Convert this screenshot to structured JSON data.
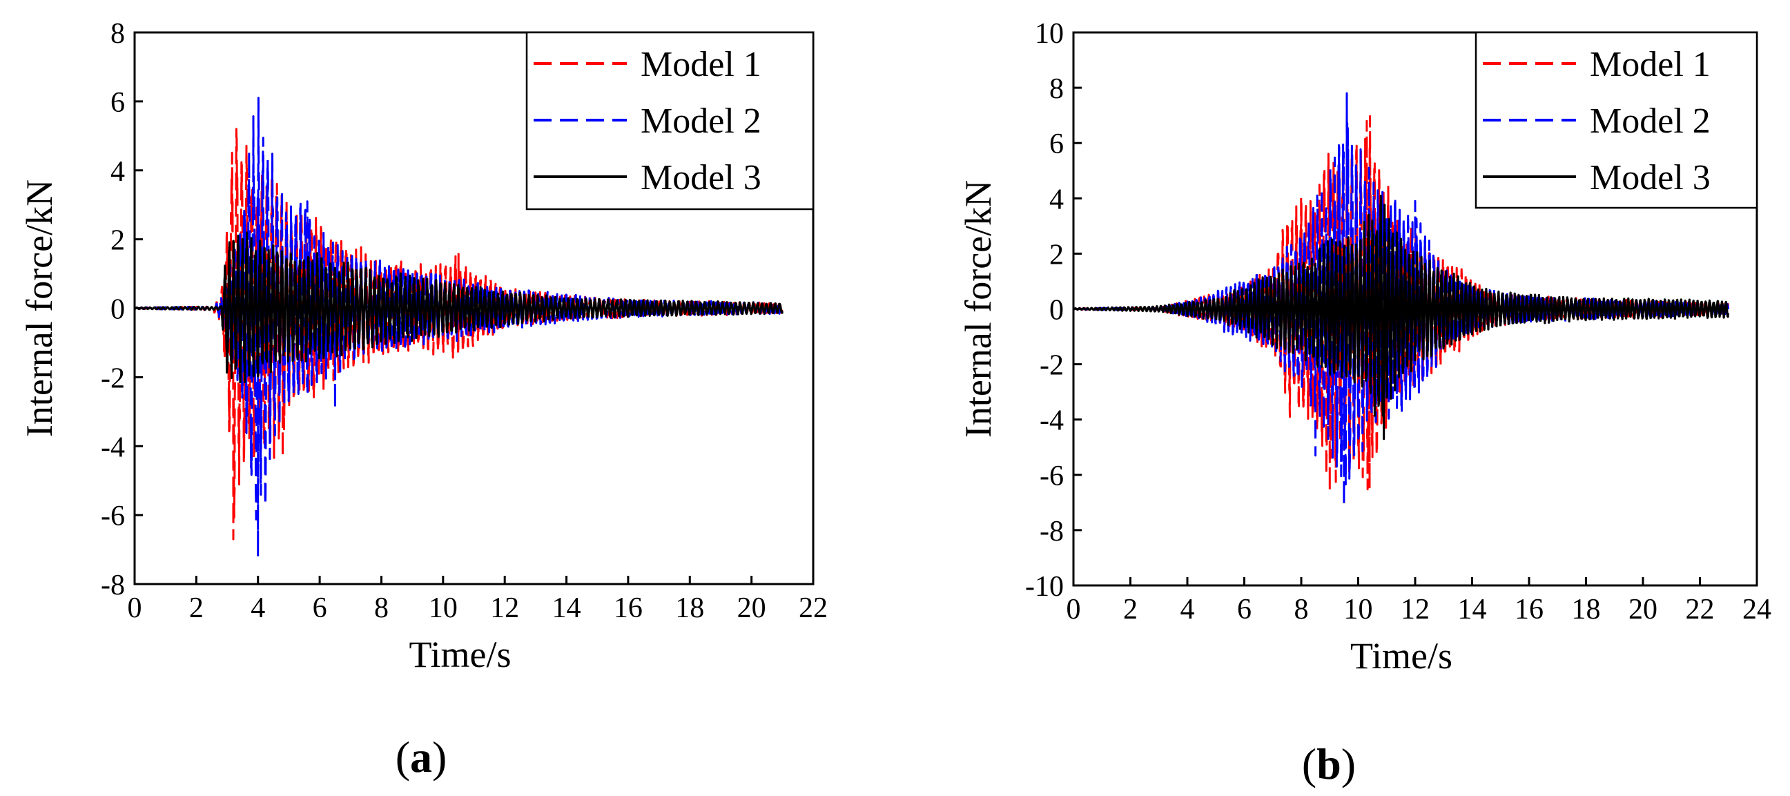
{
  "figure": {
    "panels": [
      {
        "label_open": "(",
        "label_letter": "a",
        "label_close": ")"
      },
      {
        "label_open": "(",
        "label_letter": "b",
        "label_close": ")"
      }
    ]
  },
  "colors": {
    "model1": "#ff0000",
    "model2": "#0000ff",
    "model3": "#000000",
    "axis": "#000000",
    "background": "#ffffff"
  },
  "chart_data": [
    {
      "type": "line",
      "panel": "a",
      "title": "",
      "xlabel": "Time/s",
      "ylabel": "Internal force/kN",
      "xlim": [
        0,
        22
      ],
      "ylim": [
        -8,
        8
      ],
      "xticks": [
        "0",
        "2",
        "4",
        "6",
        "8",
        "10",
        "12",
        "14",
        "16",
        "18",
        "20",
        "22"
      ],
      "yticks": [
        "8",
        "6",
        "4",
        "2",
        "0",
        "-2",
        "-4",
        "-6",
        "-8"
      ],
      "legend_position": "top-right",
      "series": [
        {
          "name": "Model 1",
          "style": "dashed",
          "color": "#ff0000",
          "signal": {
            "t_end": 21,
            "t_start": 2.6,
            "freq": 6.2,
            "noise": 0.2,
            "envelope": [
              [
                0,
                0.02
              ],
              [
                2.5,
                0.05
              ],
              [
                2.8,
                0.4
              ],
              [
                3.0,
                2.5
              ],
              [
                3.2,
                6.2
              ],
              [
                3.5,
                5.0
              ],
              [
                4.0,
                4.0
              ],
              [
                4.5,
                4.5
              ],
              [
                5.0,
                3.2
              ],
              [
                6.0,
                2.5
              ],
              [
                7.0,
                1.8
              ],
              [
                8.0,
                1.4
              ],
              [
                9.0,
                1.2
              ],
              [
                10.5,
                1.4
              ],
              [
                12.0,
                0.6
              ],
              [
                14.0,
                0.35
              ],
              [
                16.0,
                0.25
              ],
              [
                21.0,
                0.15
              ]
            ]
          },
          "peaks": [
            [
              3.2,
              5.6
            ],
            [
              3.2,
              -6.7
            ],
            [
              4.8,
              -4.3
            ],
            [
              10.5,
              1.6
            ]
          ]
        },
        {
          "name": "Model 2",
          "style": "dashed",
          "color": "#0000ff",
          "signal": {
            "t_end": 21,
            "t_start": 2.7,
            "freq": 6.6,
            "noise": 0.2,
            "envelope": [
              [
                0,
                0.02
              ],
              [
                2.6,
                0.05
              ],
              [
                3.0,
                0.8
              ],
              [
                3.5,
                3.0
              ],
              [
                4.0,
                6.6
              ],
              [
                4.4,
                4.5
              ],
              [
                5.0,
                3.0
              ],
              [
                5.6,
                3.0
              ],
              [
                6.0,
                2.2
              ],
              [
                7.0,
                1.6
              ],
              [
                8.0,
                1.3
              ],
              [
                10.0,
                1.0
              ],
              [
                12.0,
                0.6
              ],
              [
                14.0,
                0.4
              ],
              [
                16.0,
                0.25
              ],
              [
                21.0,
                0.15
              ]
            ]
          },
          "peaks": [
            [
              4.0,
              6.3
            ],
            [
              4.0,
              -7.2
            ],
            [
              6.5,
              -2.9
            ],
            [
              5.6,
              3.1
            ]
          ]
        },
        {
          "name": "Model 3",
          "style": "solid",
          "color": "#000000",
          "signal": {
            "t_end": 21,
            "t_start": 2.8,
            "freq": 7.0,
            "noise": 0.12,
            "envelope": [
              [
                0,
                0.02
              ],
              [
                2.8,
                0.05
              ],
              [
                3.0,
                2.0
              ],
              [
                3.5,
                2.3
              ],
              [
                4.0,
                2.0
              ],
              [
                5.0,
                1.7
              ],
              [
                6.0,
                1.5
              ],
              [
                7.0,
                1.3
              ],
              [
                8.0,
                1.1
              ],
              [
                10.0,
                0.8
              ],
              [
                12.0,
                0.5
              ],
              [
                14.0,
                0.3
              ],
              [
                21.0,
                0.15
              ]
            ]
          },
          "peaks": []
        }
      ]
    },
    {
      "type": "line",
      "panel": "b",
      "title": "",
      "xlabel": "Time/s",
      "ylabel": "Internal force/kN",
      "xlim": [
        0,
        24
      ],
      "ylim": [
        -10,
        10
      ],
      "xticks": [
        "0",
        "2",
        "4",
        "6",
        "8",
        "10",
        "12",
        "14",
        "16",
        "18",
        "20",
        "22",
        "24"
      ],
      "yticks": [
        "10",
        "8",
        "6",
        "4",
        "2",
        "0",
        "-2",
        "-4",
        "-6",
        "-8",
        "-10"
      ],
      "legend_position": "top-right",
      "series": [
        {
          "name": "Model 1",
          "style": "dashed",
          "color": "#ff0000",
          "signal": {
            "t_end": 23,
            "t_start": 3.0,
            "freq": 6.2,
            "noise": 0.2,
            "envelope": [
              [
                0,
                0.02
              ],
              [
                3.0,
                0.05
              ],
              [
                4.0,
                0.3
              ],
              [
                6.0,
                0.8
              ],
              [
                7.0,
                1.8
              ],
              [
                7.6,
                3.6
              ],
              [
                8.5,
                4.5
              ],
              [
                9.0,
                6.5
              ],
              [
                9.5,
                5.5
              ],
              [
                10.3,
                6.8
              ],
              [
                10.8,
                5.0
              ],
              [
                11.5,
                3.0
              ],
              [
                12.5,
                2.5
              ],
              [
                13.5,
                1.5
              ],
              [
                14.5,
                0.7
              ],
              [
                16.0,
                0.45
              ],
              [
                20.0,
                0.3
              ],
              [
                23.0,
                0.2
              ]
            ]
          },
          "peaks": [
            [
              10.3,
              6.8
            ],
            [
              9.0,
              -6.6
            ],
            [
              10.4,
              -6.5
            ],
            [
              7.6,
              -3.9
            ]
          ]
        },
        {
          "name": "Model 2",
          "style": "dashed",
          "color": "#0000ff",
          "signal": {
            "t_end": 23,
            "t_start": 3.0,
            "freq": 6.6,
            "noise": 0.2,
            "envelope": [
              [
                0,
                0.02
              ],
              [
                3.0,
                0.05
              ],
              [
                4.5,
                0.4
              ],
              [
                5.5,
                0.9
              ],
              [
                7.0,
                1.5
              ],
              [
                8.0,
                3.0
              ],
              [
                8.5,
                4.0
              ],
              [
                9.0,
                5.0
              ],
              [
                9.6,
                7.5
              ],
              [
                10.0,
                5.5
              ],
              [
                11.0,
                4.0
              ],
              [
                12.0,
                3.5
              ],
              [
                13.0,
                1.5
              ],
              [
                14.0,
                0.8
              ],
              [
                16.0,
                0.45
              ],
              [
                20.0,
                0.3
              ],
              [
                23.0,
                0.2
              ]
            ]
          },
          "peaks": [
            [
              9.6,
              7.8
            ],
            [
              9.5,
              -7.1
            ],
            [
              12.0,
              3.9
            ],
            [
              8.5,
              -5.3
            ]
          ]
        },
        {
          "name": "Model 3",
          "style": "solid",
          "color": "#000000",
          "signal": {
            "t_end": 23,
            "t_start": 3.0,
            "freq": 7.0,
            "noise": 0.15,
            "envelope": [
              [
                0,
                0.02
              ],
              [
                3.0,
                0.1
              ],
              [
                5.0,
                0.4
              ],
              [
                6.0,
                0.8
              ],
              [
                7.0,
                1.3
              ],
              [
                8.0,
                1.8
              ],
              [
                9.0,
                2.5
              ],
              [
                10.0,
                2.8
              ],
              [
                10.8,
                4.2
              ],
              [
                11.5,
                2.5
              ],
              [
                12.5,
                1.8
              ],
              [
                13.5,
                1.2
              ],
              [
                15.0,
                0.6
              ],
              [
                18.0,
                0.4
              ],
              [
                23.0,
                0.3
              ]
            ]
          },
          "peaks": [
            [
              10.9,
              4.1
            ],
            [
              10.9,
              -4.7
            ]
          ]
        }
      ]
    }
  ]
}
